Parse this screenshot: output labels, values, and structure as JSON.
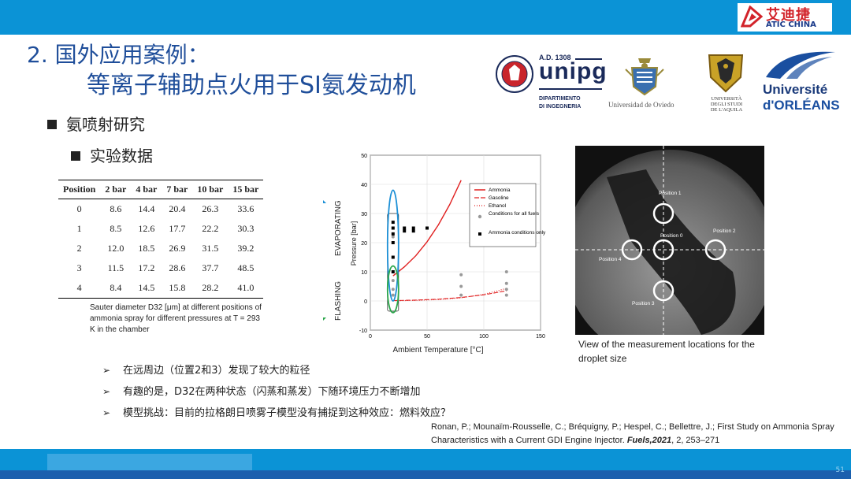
{
  "brand": {
    "cn": "艾迪捷",
    "en": "ATIC CHINA"
  },
  "title": {
    "line1": "2. 国外应用案例：",
    "line2": "等离子辅助点火用于SI氨发动机"
  },
  "bullets": {
    "level1": "氨喷射研究",
    "level2": "实验数据"
  },
  "logos": {
    "unipg": {
      "ad": "A.D. 1308",
      "name": "unipg",
      "dept1": "DIPARTIMENTO",
      "dept2": "DI INGEGNERIA"
    },
    "oviedo": "Universidad de Oviedo",
    "aquila": [
      "UNIVERSITÀ",
      "DEGLI STUDI",
      "DE L'AQUILA"
    ],
    "orleans": [
      "Université",
      "d'ORLÉANS"
    ]
  },
  "table": {
    "headers": [
      "Position",
      "2 bar",
      "4 bar",
      "7 bar",
      "10 bar",
      "15 bar"
    ],
    "rows": [
      [
        "0",
        "8.6",
        "14.4",
        "20.4",
        "26.3",
        "33.6"
      ],
      [
        "1",
        "8.5",
        "12.6",
        "17.7",
        "22.2",
        "30.3"
      ],
      [
        "2",
        "12.0",
        "18.5",
        "26.9",
        "31.5",
        "39.2"
      ],
      [
        "3",
        "11.5",
        "17.2",
        "28.6",
        "37.7",
        "48.5"
      ],
      [
        "4",
        "8.4",
        "14.5",
        "15.8",
        "28.2",
        "41.0"
      ]
    ],
    "caption": "Sauter diameter D32 [μm] at different positions of ammonia spray for different pressures at T = 293 K in the chamber"
  },
  "chart_data": {
    "type": "line",
    "xlabel": "Ambient Temperature [°C]",
    "ylabel": "Pressure [bar]",
    "xlim": [
      0,
      150
    ],
    "ylim": [
      -10,
      50
    ],
    "xticks": [
      "0",
      "50",
      "100",
      "150"
    ],
    "yticks": [
      "-10",
      "0",
      "10",
      "20",
      "30",
      "40",
      "50"
    ],
    "side_labels": {
      "top": "EVAPORATING",
      "bottom": "FLASHING"
    },
    "legend": [
      "Ammonia",
      "Gasoline",
      "Ethanol",
      "Conditions for all fuels",
      "Ammonia conditions only"
    ],
    "series": [
      {
        "name": "Ammonia",
        "x": [
          20,
          30,
          40,
          50,
          60,
          70,
          80
        ],
        "y": [
          8.6,
          11.7,
          15.5,
          20.3,
          26.1,
          33.1,
          41.4
        ]
      },
      {
        "name": "Gasoline",
        "x": [
          20,
          40,
          60,
          80,
          100,
          120
        ],
        "y": [
          0.1,
          0.3,
          0.6,
          1.2,
          2.1,
          3.5
        ]
      },
      {
        "name": "Ethanol",
        "x": [
          20,
          40,
          60,
          80,
          100,
          120
        ],
        "y": [
          0.06,
          0.18,
          0.47,
          1.08,
          2.26,
          4.3
        ]
      },
      {
        "name": "Conditions for all fuels",
        "x": [
          20,
          20,
          20,
          20,
          20,
          80,
          80,
          80,
          120,
          120,
          120,
          120
        ],
        "y": [
          2,
          4,
          7,
          15,
          22,
          2,
          5,
          9,
          2,
          4,
          6,
          10
        ]
      },
      {
        "name": "Ammonia conditions only",
        "x": [
          20,
          20,
          20,
          20,
          20,
          20,
          30,
          30,
          38,
          38,
          50
        ],
        "y": [
          10,
          15,
          20,
          23,
          25,
          27,
          24,
          25,
          24,
          25,
          25
        ]
      }
    ]
  },
  "photo": {
    "labels": [
      "Position 1",
      "Position 0",
      "Position 2",
      "Position 4",
      "Position 3"
    ],
    "caption": "View of the measurement locations for the droplet size"
  },
  "points": [
    "在远周边（位置2和3）发现了较大的粒径",
    "有趣的是，D32在两种状态（闪蒸和蒸发）下随环境压力不断增加",
    "模型挑战：目前的拉格朗日喷雾子模型没有捕捉到这种效应：燃料效应？"
  ],
  "reference": {
    "text": "Ronan, P.; Mounaïm-Rousselle, C.; Bréquigny, P.; Hespel, C.; Bellettre, J.; First Study on Ammonia Spray Characteristics with a Current GDI Engine Injector.",
    "journal": "Fuels,2021",
    "pages": ", 2, 253–271"
  },
  "page_number": "51",
  "colors": {
    "bar": "#0b93d6",
    "title": "#1f4e9a",
    "brand_red": "#d2232a"
  }
}
